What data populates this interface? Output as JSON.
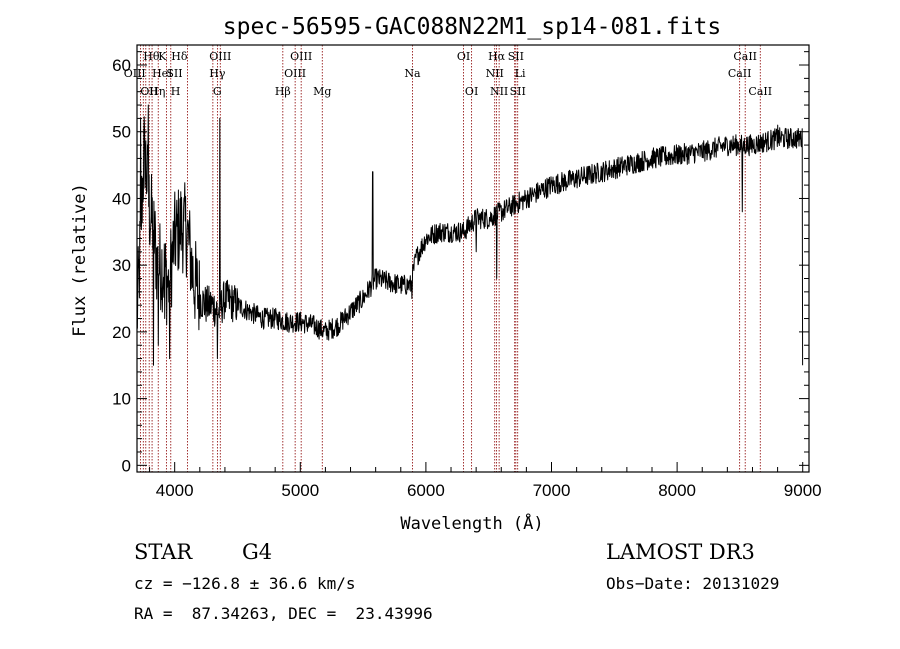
{
  "chart_data": {
    "type": "line",
    "title": "spec-56595-GAC088N22M1_sp14-081.fits",
    "xlabel": "Wavelength (Å)",
    "ylabel": "Flux (relative)",
    "xlim": [
      3700,
      9050
    ],
    "ylim": [
      -1,
      63
    ],
    "xticks": [
      4000,
      5000,
      6000,
      7000,
      8000,
      9000
    ],
    "yticks": [
      0,
      10,
      20,
      30,
      40,
      50,
      60
    ],
    "series_color": "#000000",
    "marker_color": "#8b0000",
    "spectrum_anchors": [
      [
        3700,
        22
      ],
      [
        3720,
        30
      ],
      [
        3740,
        40
      ],
      [
        3760,
        48
      ],
      [
        3780,
        43
      ],
      [
        3800,
        38
      ],
      [
        3830,
        36
      ],
      [
        3860,
        30
      ],
      [
        3900,
        30
      ],
      [
        3950,
        27
      ],
      [
        4000,
        34
      ],
      [
        4050,
        36
      ],
      [
        4100,
        35
      ],
      [
        4150,
        28
      ],
      [
        4200,
        25
      ],
      [
        4250,
        24
      ],
      [
        4300,
        24
      ],
      [
        4350,
        23
      ],
      [
        4400,
        25
      ],
      [
        4500,
        24
      ],
      [
        4600,
        23
      ],
      [
        4700,
        22
      ],
      [
        4800,
        22
      ],
      [
        4900,
        21.5
      ],
      [
        5000,
        21.5
      ],
      [
        5100,
        21
      ],
      [
        5200,
        20
      ],
      [
        5300,
        21
      ],
      [
        5400,
        23
      ],
      [
        5500,
        25
      ],
      [
        5600,
        28
      ],
      [
        5700,
        27.5
      ],
      [
        5800,
        27
      ],
      [
        5880,
        27
      ],
      [
        5920,
        31
      ],
      [
        6000,
        34
      ],
      [
        6100,
        35
      ],
      [
        6200,
        35
      ],
      [
        6300,
        35
      ],
      [
        6400,
        37
      ],
      [
        6500,
        37
      ],
      [
        6600,
        38
      ],
      [
        6700,
        39
      ],
      [
        6800,
        40
      ],
      [
        6900,
        41
      ],
      [
        7000,
        42
      ],
      [
        7200,
        43
      ],
      [
        7400,
        44
      ],
      [
        7600,
        45
      ],
      [
        7800,
        46
      ],
      [
        8000,
        46.5
      ],
      [
        8200,
        47
      ],
      [
        8400,
        48
      ],
      [
        8600,
        48
      ],
      [
        8800,
        49
      ],
      [
        9000,
        49
      ]
    ],
    "spectrum_spikes": [
      [
        3730,
        52
      ],
      [
        3760,
        50
      ],
      [
        3790,
        54
      ],
      [
        3830,
        15
      ],
      [
        3870,
        18
      ],
      [
        3920,
        22
      ],
      [
        3960,
        16
      ],
      [
        4340,
        16
      ],
      [
        4358,
        52
      ],
      [
        5577,
        44
      ],
      [
        5890,
        25
      ],
      [
        6563,
        28
      ],
      [
        6400,
        32
      ],
      [
        8520,
        38
      ],
      [
        8800,
        51
      ],
      [
        9000,
        15
      ]
    ],
    "lines": [
      {
        "wave": 3727,
        "label": "OII",
        "row": 3,
        "anchor": "start"
      },
      {
        "wave": 3750,
        "label": "Hθ",
        "row": 1,
        "anchor": "start"
      },
      {
        "wave": 3770,
        "label": "OIII",
        "row": 2,
        "anchor": "end"
      },
      {
        "wave": 3797,
        "label": "Hη",
        "row": 3,
        "anchor": "start"
      },
      {
        "wave": 3820,
        "label": "HeI",
        "row": 2,
        "anchor": "start"
      },
      {
        "wave": 3869,
        "label": "K",
        "row": 1,
        "anchor": "start"
      },
      {
        "wave": 3934,
        "label": "SII",
        "row": 2,
        "anchor": "start"
      },
      {
        "wave": 3969,
        "label": "H",
        "row": 3,
        "anchor": "start"
      },
      {
        "wave": 4102,
        "label": "Hδ",
        "row": 1,
        "anchor": "end"
      },
      {
        "wave": 4304,
        "label": "G",
        "row": 3,
        "anchor": "start"
      },
      {
        "wave": 4340,
        "label": "Hγ",
        "row": 2,
        "anchor": "middle"
      },
      {
        "wave": 4363,
        "label": "OIII",
        "row": 1,
        "anchor": "middle"
      },
      {
        "wave": 4861,
        "label": "Hβ",
        "row": 3,
        "anchor": "middle"
      },
      {
        "wave": 4959,
        "label": "OIII",
        "row": 2,
        "anchor": "middle"
      },
      {
        "wave": 5007,
        "label": "OIII",
        "row": 1,
        "anchor": "middle"
      },
      {
        "wave": 5175,
        "label": "Mg",
        "row": 3,
        "anchor": "middle"
      },
      {
        "wave": 5893,
        "label": "Na",
        "row": 2,
        "anchor": "middle"
      },
      {
        "wave": 6300,
        "label": "OI",
        "row": 1,
        "anchor": "middle"
      },
      {
        "wave": 6364,
        "label": "OI",
        "row": 3,
        "anchor": "middle"
      },
      {
        "wave": 6548,
        "label": "NII",
        "row": 2,
        "anchor": "middle"
      },
      {
        "wave": 6563,
        "label": "Hα",
        "row": 1,
        "anchor": "middle"
      },
      {
        "wave": 6583,
        "label": "NII",
        "row": 3,
        "anchor": "middle"
      },
      {
        "wave": 6707,
        "label": "Li",
        "row": 2,
        "anchor": "start"
      },
      {
        "wave": 6716,
        "label": "SII",
        "row": 1,
        "anchor": "middle"
      },
      {
        "wave": 6731,
        "label": "SII",
        "row": 3,
        "anchor": "middle"
      },
      {
        "wave": 8498,
        "label": "CaII",
        "row": 2,
        "anchor": "middle"
      },
      {
        "wave": 8542,
        "label": "CaII",
        "row": 1,
        "anchor": "middle"
      },
      {
        "wave": 8662,
        "label": "CaII",
        "row": 3,
        "anchor": "middle"
      }
    ]
  },
  "info": {
    "class": "STAR",
    "subclass": "G4",
    "survey": "LAMOST DR3",
    "cz": "cz = −126.8 ± 36.6 km/s",
    "obs_date": "Obs−Date: 20131029",
    "radec": "RA =  87.34263, DEC =  23.43996"
  }
}
